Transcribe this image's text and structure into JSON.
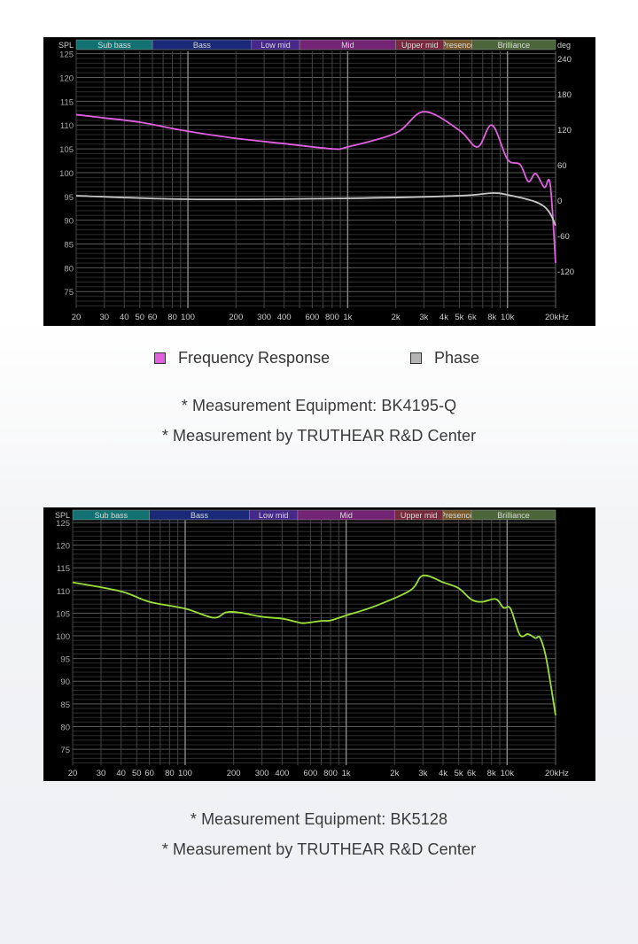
{
  "legend": {
    "items": [
      {
        "label": "Frequency Response",
        "color": "#e060e0"
      },
      {
        "label": "Phase",
        "color": "#b4b4b4"
      }
    ]
  },
  "captions": {
    "top_equipment": "* Measurement Equipment: BK4195-Q",
    "top_by": "* Measurement by TRUTHEAR R&D Center",
    "bottom_equipment": "* Measurement Equipment: BK5128",
    "bottom_by": "* Measurement by TRUTHEAR R&D Center"
  },
  "chart_data": [
    {
      "type": "line",
      "xscale": "log",
      "xlim": [
        20,
        20000
      ],
      "ylim": [
        71.5,
        125.5
      ],
      "y2lim": [
        -183,
        252
      ],
      "ylabel": "SPL",
      "y2label": "deg",
      "grid": true,
      "bands": [
        {
          "label": "Sub bass",
          "from": 20,
          "to": 60,
          "color": "#127272"
        },
        {
          "label": "Bass",
          "from": 60,
          "to": 250,
          "color": "#1a2a78"
        },
        {
          "label": "Low mid",
          "from": 250,
          "to": 500,
          "color": "#45288a"
        },
        {
          "label": "Mid",
          "from": 500,
          "to": 2000,
          "color": "#742474"
        },
        {
          "label": "Upper mid",
          "from": 2000,
          "to": 4000,
          "color": "#762a3c"
        },
        {
          "label": "Presence",
          "from": 4000,
          "to": 6000,
          "color": "#76582a"
        },
        {
          "label": "Brilliance",
          "from": 6000,
          "to": 20000,
          "color": "#4c663a"
        }
      ],
      "band_text_color": "#d8d8d8",
      "x_ticks": [
        [
          20,
          "20"
        ],
        [
          30,
          "30"
        ],
        [
          40,
          "40"
        ],
        [
          50,
          "50"
        ],
        [
          60,
          "60"
        ],
        [
          80,
          "80"
        ],
        [
          100,
          "100"
        ],
        [
          200,
          "200"
        ],
        [
          300,
          "300"
        ],
        [
          400,
          "400"
        ],
        [
          600,
          "600"
        ],
        [
          800,
          "800"
        ],
        [
          1000,
          "1k"
        ],
        [
          2000,
          "2k"
        ],
        [
          3000,
          "3k"
        ],
        [
          4000,
          "4k"
        ],
        [
          5000,
          "5k"
        ],
        [
          6000,
          "6k"
        ],
        [
          8000,
          "8k"
        ],
        [
          10000,
          "10k"
        ],
        [
          20000,
          "20kHz"
        ]
      ],
      "y_ticks": [
        125,
        120,
        115,
        110,
        105,
        100,
        95,
        90,
        85,
        80,
        75
      ],
      "y2_ticks": [
        240,
        180,
        120,
        60,
        0,
        -60,
        -120
      ],
      "series": [
        {
          "name": "Frequency Response",
          "axis": "left",
          "color": "#e060e0",
          "x": [
            20,
            30,
            50,
            100,
            200,
            400,
            800,
            1000,
            2000,
            3000,
            5000,
            6500,
            8000,
            10000,
            12000,
            13500,
            15000,
            17000,
            18500,
            20000
          ],
          "y": [
            112.2,
            111.5,
            110.6,
            108.7,
            107.2,
            106.1,
            105,
            105.4,
            108.3,
            112.8,
            108.9,
            105.4,
            110,
            102.8,
            101.7,
            98.1,
            99.8,
            96.9,
            97.6,
            81
          ]
        },
        {
          "name": "Phase",
          "axis": "right",
          "color": "#c8c8c8",
          "x": [
            20,
            100,
            1000,
            5000,
            8000,
            10000,
            15000,
            18000,
            20000
          ],
          "y": [
            7.5,
            1.5,
            3,
            7.5,
            12,
            9,
            -3,
            -18,
            -43
          ]
        }
      ]
    },
    {
      "type": "line",
      "xscale": "log",
      "xlim": [
        20,
        20000
      ],
      "ylim": [
        71.5,
        125.5
      ],
      "ylabel": "SPL",
      "grid": true,
      "bands": [
        {
          "label": "Sub bass",
          "from": 20,
          "to": 60,
          "color": "#127272"
        },
        {
          "label": "Bass",
          "from": 60,
          "to": 250,
          "color": "#1a2a78"
        },
        {
          "label": "Low mid",
          "from": 250,
          "to": 500,
          "color": "#45288a"
        },
        {
          "label": "Mid",
          "from": 500,
          "to": 2000,
          "color": "#742474"
        },
        {
          "label": "Upper mid",
          "from": 2000,
          "to": 4000,
          "color": "#762a3c"
        },
        {
          "label": "Presence",
          "from": 4000,
          "to": 6000,
          "color": "#76582a"
        },
        {
          "label": "Brilliance",
          "from": 6000,
          "to": 20000,
          "color": "#4c663a"
        }
      ],
      "band_text_color": "#d8d8d8",
      "x_ticks": [
        [
          20,
          "20"
        ],
        [
          30,
          "30"
        ],
        [
          40,
          "40"
        ],
        [
          50,
          "50"
        ],
        [
          60,
          "60"
        ],
        [
          80,
          "80"
        ],
        [
          100,
          "100"
        ],
        [
          200,
          "200"
        ],
        [
          300,
          "300"
        ],
        [
          400,
          "400"
        ],
        [
          600,
          "600"
        ],
        [
          800,
          "800"
        ],
        [
          1000,
          "1k"
        ],
        [
          2000,
          "2k"
        ],
        [
          3000,
          "3k"
        ],
        [
          4000,
          "4k"
        ],
        [
          5000,
          "5k"
        ],
        [
          6000,
          "6k"
        ],
        [
          8000,
          "8k"
        ],
        [
          10000,
          "10k"
        ],
        [
          20000,
          "20kHz"
        ]
      ],
      "y_ticks": [
        125,
        120,
        115,
        110,
        105,
        100,
        95,
        90,
        85,
        80,
        75
      ],
      "series": [
        {
          "axis": "left",
          "color": "#9be03a",
          "x": [
            20,
            40,
            60,
            100,
            150,
            180,
            220,
            300,
            400,
            500,
            550,
            700,
            800,
            1000,
            1500,
            2500,
            3000,
            4000,
            5000,
            6000,
            7000,
            8500,
            9500,
            10500,
            12000,
            13500,
            15000,
            16000,
            17500,
            20000
          ],
          "y": [
            111.8,
            109.8,
            107.5,
            106,
            104,
            105.2,
            105.1,
            104.2,
            103.8,
            103,
            102.8,
            103.3,
            103.4,
            104.5,
            106.5,
            110,
            113.3,
            111.8,
            110.5,
            108,
            107.5,
            108.1,
            106.2,
            106,
            100.2,
            100.4,
            99.5,
            99.6,
            95,
            82.5
          ]
        }
      ]
    }
  ]
}
